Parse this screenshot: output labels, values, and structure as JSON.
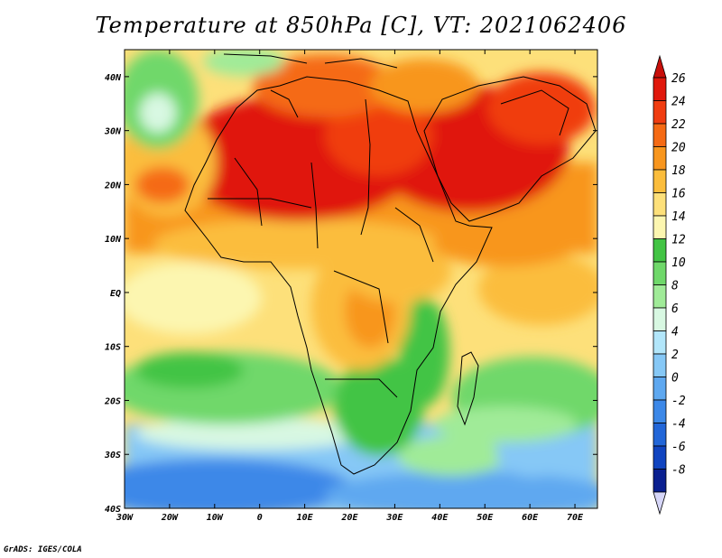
{
  "title": "Temperature at 850hPa [C], VT: 2021062406",
  "credit": "GrADS: IGES/COLA",
  "map": {
    "lon_range": [
      -30,
      75
    ],
    "lat_range": [
      -40,
      45
    ],
    "x_ticks": [
      {
        "lon": -30,
        "label": "30W"
      },
      {
        "lon": -20,
        "label": "20W"
      },
      {
        "lon": -10,
        "label": "10W"
      },
      {
        "lon": 0,
        "label": "0"
      },
      {
        "lon": 10,
        "label": "10E"
      },
      {
        "lon": 20,
        "label": "20E"
      },
      {
        "lon": 30,
        "label": "30E"
      },
      {
        "lon": 40,
        "label": "40E"
      },
      {
        "lon": 50,
        "label": "50E"
      },
      {
        "lon": 60,
        "label": "60E"
      },
      {
        "lon": 70,
        "label": "70E"
      }
    ],
    "y_ticks": [
      {
        "lat": 40,
        "label": "40N"
      },
      {
        "lat": 30,
        "label": "30N"
      },
      {
        "lat": 20,
        "label": "20N"
      },
      {
        "lat": 10,
        "label": "10N"
      },
      {
        "lat": 0,
        "label": "EQ"
      },
      {
        "lat": -10,
        "label": "10S"
      },
      {
        "lat": -20,
        "label": "20S"
      },
      {
        "lat": -30,
        "label": "30S"
      },
      {
        "lat": -40,
        "label": "40S"
      }
    ]
  },
  "colorbar": {
    "labels": [
      "26",
      "24",
      "22",
      "20",
      "18",
      "16",
      "14",
      "12",
      "10",
      "8",
      "6",
      "4",
      "2",
      "0",
      "-2",
      "-4",
      "-6",
      "-8"
    ],
    "colors": [
      "#e0180c",
      "#f03c10",
      "#f56a14",
      "#f8961e",
      "#fbbd3c",
      "#fde07a",
      "#fcf6b0",
      "#42c444",
      "#6fd86a",
      "#a0eb98",
      "#d8f8e2",
      "#b2e6fa",
      "#86c8f6",
      "#5ea8f0",
      "#3c88e8",
      "#2266d8",
      "#1044c0",
      "#0a2090"
    ],
    "top_color": "#c80f0a",
    "bottom_color": "#d6d6f8"
  }
}
